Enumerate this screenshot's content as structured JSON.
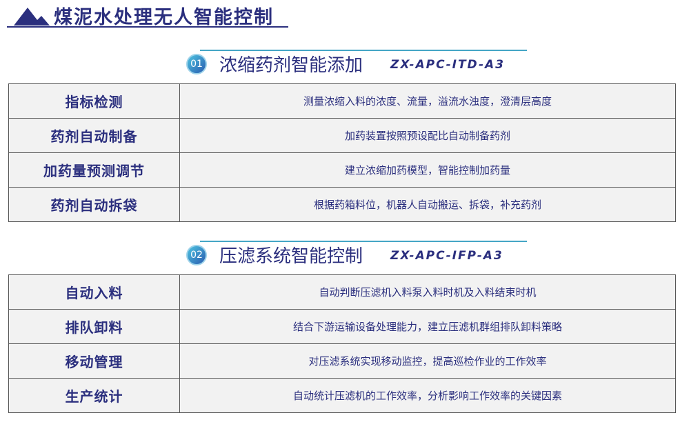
{
  "title": "煤泥水处理无人智能控制",
  "sections": [
    {
      "num": "01",
      "name": "浓缩药剂智能添加",
      "code": "ZX-APC-ITD-A3",
      "rows": [
        {
          "k": "指标检测",
          "v": "测量浓缩入料的浓度、流量，溢流水浊度，澄清层高度"
        },
        {
          "k": "药剂自动制备",
          "v": "加药装置按照预设配比自动制备药剂"
        },
        {
          "k": "加药量预测调节",
          "v": "建立浓缩加药模型，智能控制加药量"
        },
        {
          "k": "药剂自动拆袋",
          "v": "根据药箱料位，机器人自动搬运、拆袋，补充药剂"
        }
      ]
    },
    {
      "num": "02",
      "name": "压滤系统智能控制",
      "code": "ZX-APC-IFP-A3",
      "rows": [
        {
          "k": "自动入料",
          "v": "自动判断压滤机入料泵入料时机及入料结束时机"
        },
        {
          "k": "排队卸料",
          "v": "结合下游运输设备处理能力，建立压滤机群组排队卸料策略"
        },
        {
          "k": "移动管理",
          "v": "对压滤系统实现移动监控，提高巡检作业的工作效率"
        },
        {
          "k": "生产统计",
          "v": "自动统计压滤机的工作效率，分析影响工作效率的关键因素"
        }
      ]
    }
  ]
}
